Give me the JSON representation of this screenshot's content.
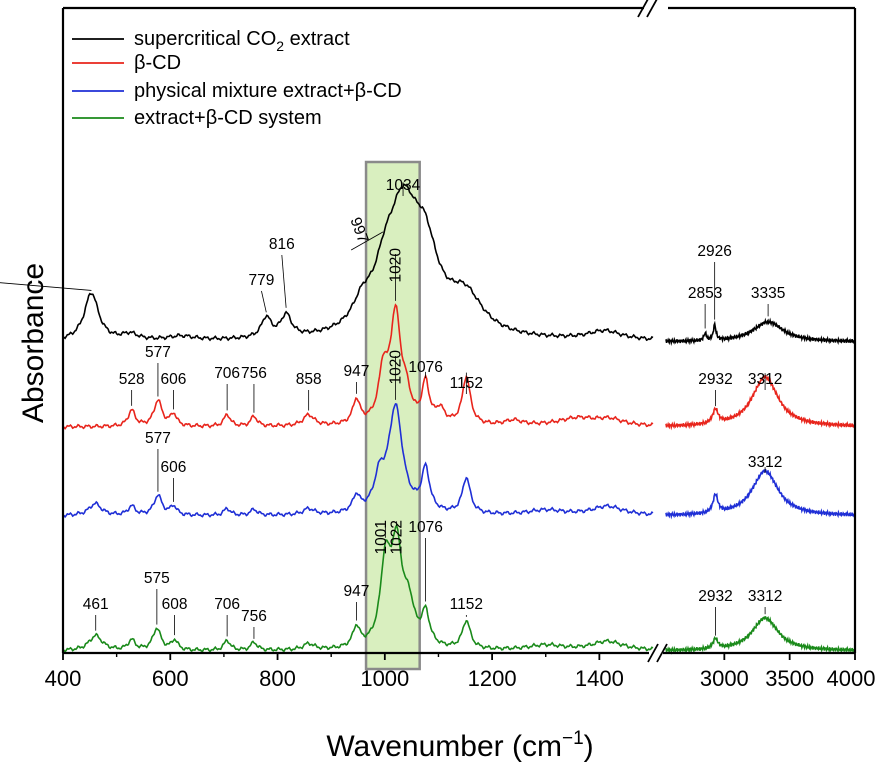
{
  "chart_data": {
    "type": "line",
    "title": "",
    "xlabel": "Wavenumber (cm",
    "xlabel_sup": "−1",
    "xlabel_close": ")",
    "ylabel": "Absorbance",
    "xlim_left": [
      400,
      1500
    ],
    "xlim_right": [
      2500,
      4000
    ],
    "x_ticks_left": [
      "400",
      "600",
      "800",
      "1000",
      "1200",
      "1400"
    ],
    "x_ticks_right": [
      "3000",
      "3500",
      "4000"
    ],
    "highlight_region": [
      965,
      1065
    ],
    "highlight_color": "#d9efbf",
    "legend_position": "top-left",
    "series": [
      {
        "name": "supercritical CO",
        "name_sub": "2",
        "name_suffix": " extract",
        "color": "#000000",
        "baseline": 0,
        "peaks": [
          [
            453,
            48,
            16
          ],
          [
            525,
            6,
            18
          ],
          [
            620,
            4,
            30
          ],
          [
            779,
            20,
            11
          ],
          [
            816,
            22,
            12
          ],
          [
            958,
            22,
            22
          ],
          [
            1000,
            40,
            25
          ],
          [
            1034,
            112,
            34
          ],
          [
            1075,
            70,
            30
          ],
          [
            1150,
            38,
            40
          ],
          [
            1410,
            9,
            38
          ],
          [
            2853,
            7,
            12
          ],
          [
            2926,
            15,
            12
          ],
          [
            3335,
            20,
            140
          ]
        ],
        "annotations": [
          "453",
          "779",
          "816",
          "997",
          "1034",
          "2853",
          "2926",
          "3335"
        ]
      },
      {
        "name": "β-CD",
        "color": "#e8251c",
        "baseline": 0,
        "peaks": [
          [
            528,
            16,
            8
          ],
          [
            577,
            26,
            9
          ],
          [
            606,
            12,
            7
          ],
          [
            706,
            12,
            7
          ],
          [
            756,
            10,
            7
          ],
          [
            858,
            11,
            12
          ],
          [
            947,
            24,
            8
          ],
          [
            997,
            48,
            10
          ],
          [
            1020,
            108,
            12
          ],
          [
            1040,
            22,
            10
          ],
          [
            1076,
            40,
            8
          ],
          [
            1103,
            14,
            10
          ],
          [
            1152,
            48,
            9
          ],
          [
            1240,
            5,
            20
          ],
          [
            1360,
            8,
            45
          ],
          [
            1420,
            6,
            30
          ],
          [
            2932,
            14,
            25
          ],
          [
            3312,
            50,
            120
          ]
        ],
        "annotations": [
          "528",
          "577",
          "606",
          "706",
          "756",
          "858",
          "947",
          "997",
          "1020",
          "1076",
          "1152",
          "2932",
          "3312"
        ]
      },
      {
        "name": "physical mixture extract+β-CD",
        "color": "#1f2fd6",
        "baseline": 0,
        "peaks": [
          [
            460,
            12,
            14
          ],
          [
            528,
            9,
            8
          ],
          [
            577,
            20,
            9
          ],
          [
            606,
            9,
            7
          ],
          [
            706,
            7,
            7
          ],
          [
            756,
            6,
            7
          ],
          [
            858,
            6,
            12
          ],
          [
            947,
            16,
            8
          ],
          [
            990,
            30,
            12
          ],
          [
            1020,
            106,
            16
          ],
          [
            1076,
            42,
            9
          ],
          [
            1152,
            36,
            9
          ],
          [
            1300,
            5,
            40
          ],
          [
            1415,
            9,
            35
          ],
          [
            2932,
            18,
            22
          ],
          [
            3312,
            45,
            120
          ]
        ],
        "annotations": [
          "577",
          "606",
          "1020",
          "3312"
        ]
      },
      {
        "name": "extract+β-CD system",
        "color": "#1a8a1a",
        "baseline": 0,
        "peaks": [
          [
            461,
            15,
            15
          ],
          [
            528,
            10,
            8
          ],
          [
            575,
            22,
            9
          ],
          [
            608,
            10,
            7
          ],
          [
            706,
            10,
            7
          ],
          [
            756,
            8,
            7
          ],
          [
            858,
            6,
            12
          ],
          [
            947,
            20,
            8
          ],
          [
            1001,
            78,
            11
          ],
          [
            1022,
            98,
            13
          ],
          [
            1045,
            35,
            12
          ],
          [
            1076,
            32,
            9
          ],
          [
            1152,
            28,
            9
          ],
          [
            1300,
            5,
            40
          ],
          [
            1415,
            9,
            35
          ],
          [
            2932,
            10,
            22
          ],
          [
            3312,
            33,
            120
          ]
        ],
        "annotations": [
          "461",
          "575",
          "608",
          "706",
          "756",
          "947",
          "1001",
          "1022",
          "1076",
          "1152",
          "2932",
          "3312"
        ]
      }
    ]
  }
}
